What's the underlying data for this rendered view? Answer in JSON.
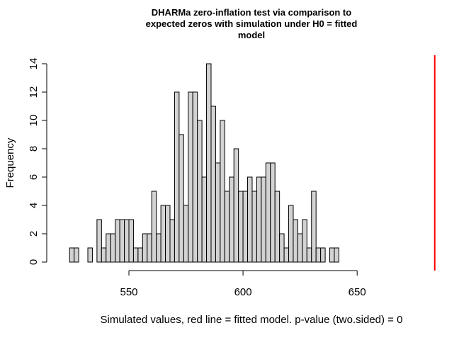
{
  "chart_data": {
    "type": "histogram",
    "title_lines": [
      "DHARMa zero-inflation test via comparison to",
      "expected zeros with simulation under H0 = fitted",
      "model"
    ],
    "xlabel": "Simulated values, red line = fitted model. p-value (two.sided) = 0",
    "ylabel": "Frequency",
    "bin_start": 524,
    "bin_width": 2,
    "counts": [
      1,
      1,
      0,
      0,
      1,
      0,
      3,
      1,
      2,
      2,
      3,
      3,
      3,
      3,
      1,
      1,
      2,
      2,
      5,
      2,
      4,
      4,
      3,
      12,
      9,
      4,
      12,
      12,
      10,
      6,
      14,
      11,
      7,
      10,
      5,
      6,
      8,
      5,
      5,
      6,
      5,
      6,
      6,
      7,
      7,
      5,
      2,
      1,
      4,
      3,
      2,
      3,
      1,
      5,
      1,
      1,
      0,
      1,
      1
    ],
    "xlim": [
      505,
      690
    ],
    "ylim": [
      0,
      14
    ],
    "x_ticks": [
      550,
      600,
      650
    ],
    "y_ticks": [
      0,
      2,
      4,
      6,
      8,
      10,
      12,
      14
    ],
    "observed_value": 684,
    "observed_line_color": "#FF0000",
    "bar_fill": "#D3D3D3",
    "bar_stroke": "#000000"
  }
}
